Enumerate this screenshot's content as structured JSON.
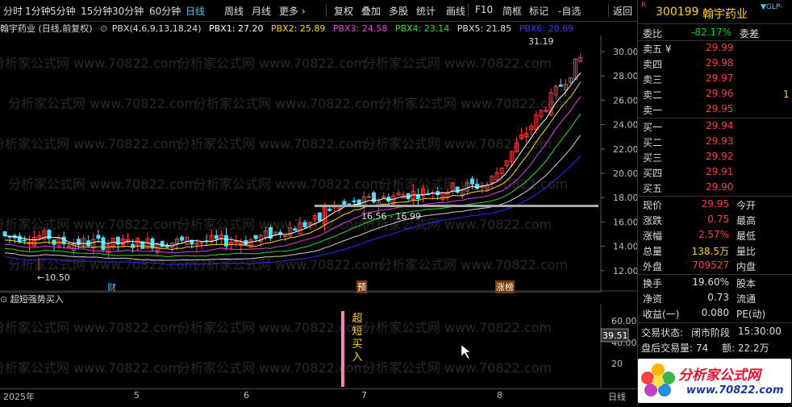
{
  "toolbar": {
    "items": [
      "分时",
      "1分钟",
      "5分钟",
      "15分钟",
      "30分钟",
      "60分钟",
      "日线",
      "周线",
      "月线",
      "更多 ›",
      "复权",
      "叠加",
      "多股",
      "统计",
      "画线",
      "F10",
      "简框",
      "标记",
      "-自选",
      "返回"
    ],
    "active": "日线"
  },
  "chart_header": {
    "title": "翰宇药业 (日线,前复权)",
    "indicator": "PBX(4,6,9,13,18,24)",
    "pbx1": "PBX1: 27.20",
    "pbx2": "PBX2: 25.89",
    "pbx3": "PBX3: 24.58",
    "pbx4": "PBX4: 23.14",
    "pbx5": "PBX5: 21.85",
    "pbx6": "PBX6: 20.69"
  },
  "colors": {
    "pbx1": "#ffffff",
    "pbx2": "#ffd21f",
    "pbx3": "#e040e0",
    "pbx4": "#20e020",
    "pbx5": "#d0d0d0",
    "pbx6": "#2a2aff",
    "up": "#ff3b3b",
    "down": "#49e0ff"
  },
  "main_chart": {
    "y_ticks": [
      "30.00",
      "28.00",
      "26.00",
      "24.00",
      "22.00",
      "20.00",
      "18.00",
      "16.00",
      "14.00",
      "12.00"
    ],
    "high_label": "31.19",
    "low_label": "←10.50",
    "range_label": "16.56 - 16.99",
    "markers": [
      "财",
      "预",
      "涨榜"
    ]
  },
  "sub_chart": {
    "title": "超短强势买入",
    "y_ticks": [
      "60.00",
      "40.00",
      "20"
    ],
    "current_value": "39.51",
    "signal_text": [
      "超",
      "短",
      "买",
      "入"
    ]
  },
  "x_axis": {
    "labels": [
      "2025年",
      "5",
      "6",
      "7",
      "8"
    ],
    "period": "日线"
  },
  "watermark": "分析家公式网 www.70822.com",
  "quote": {
    "code": "300199",
    "name": "翰宇药业",
    "tag": "GLP-",
    "r_badge": "R",
    "ratio_label": "委比",
    "ratio_value": "-82.17%",
    "diff_label": "委差",
    "asks": [
      {
        "label": "卖五 ¥",
        "price": "29.99"
      },
      {
        "label": "卖四",
        "price": "29.98"
      },
      {
        "label": "卖三",
        "price": "29.97"
      },
      {
        "label": "卖二",
        "price": "29.96"
      },
      {
        "label": "卖一",
        "price": "29.95"
      }
    ],
    "bids": [
      {
        "label": "买一",
        "price": "29.94"
      },
      {
        "label": "买二",
        "price": "29.93"
      },
      {
        "label": "买三",
        "price": "29.92"
      },
      {
        "label": "买四",
        "price": "29.91"
      },
      {
        "label": "买五",
        "price": "29.90"
      }
    ],
    "stats": [
      {
        "label": "现价",
        "value": "29.95",
        "label2": "今开"
      },
      {
        "label": "涨跌",
        "value": "0.75",
        "label2": "最高"
      },
      {
        "label": "涨幅",
        "value": "2.57%",
        "label2": "最低"
      },
      {
        "label": "总量",
        "value": "138.5万",
        "label2": "量比"
      },
      {
        "label": "外盘",
        "value": "709527",
        "label2": "内盘"
      }
    ],
    "stats2": [
      {
        "label": "换手",
        "value": "19.60%",
        "label2": "股本"
      },
      {
        "label": "净资",
        "value": "0.73",
        "label2": "流通"
      },
      {
        "label": "收益(一)",
        "value": "0.080",
        "label2": "PE(动)"
      }
    ],
    "trade_status_label": "交易状态:",
    "trade_status": "闭市阶段",
    "trade_time": "15:30:00",
    "after_volume": "盘后交易量: 74",
    "after_amount": "额: 22.2万",
    "ask_side_extra": "1"
  },
  "logo": {
    "title": "分析家公式网",
    "url": "www.70822.com"
  }
}
